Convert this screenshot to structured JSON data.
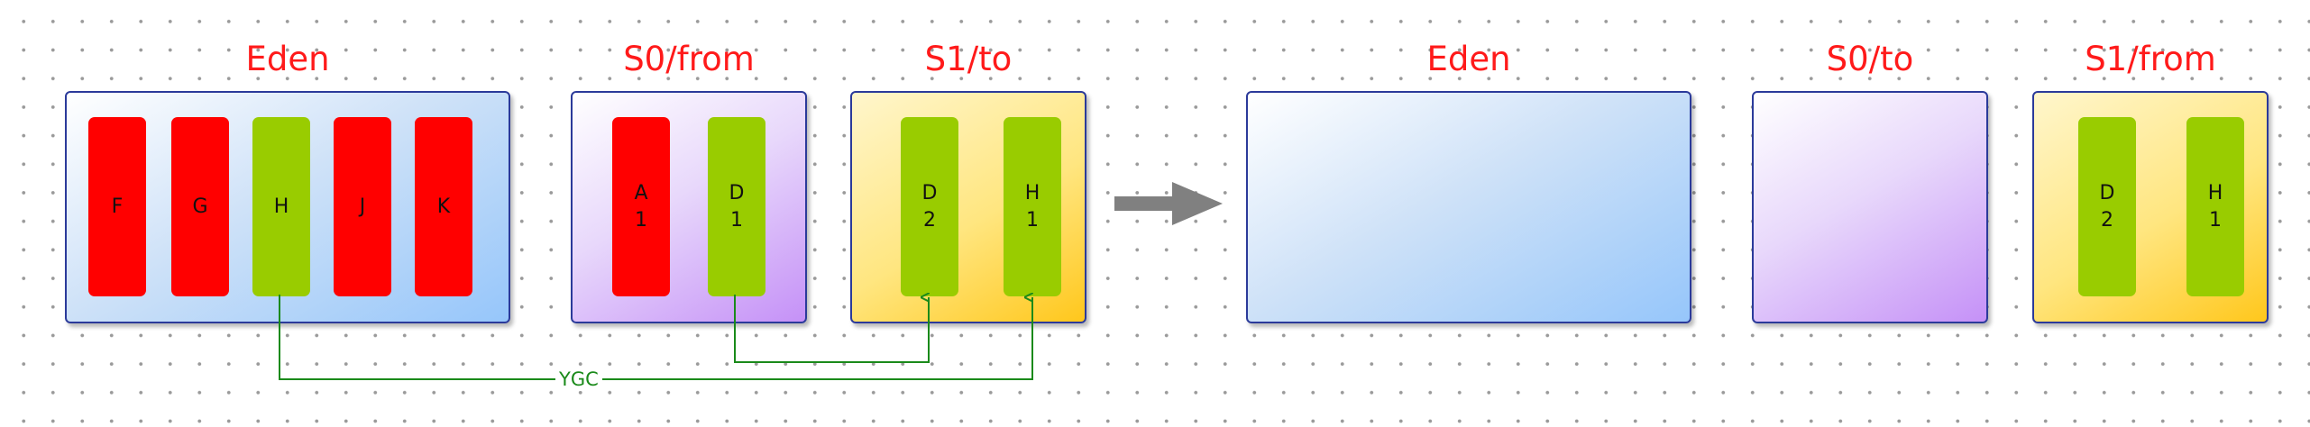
{
  "before": {
    "eden": {
      "title": "Eden",
      "objects": [
        "F",
        "G",
        "H",
        "J",
        "K"
      ]
    },
    "s0": {
      "title": "S0/from",
      "objects": [
        "A\n1",
        "D\n1"
      ]
    },
    "s1": {
      "title": "S1/to",
      "objects": [
        "D\n2",
        "H\n1"
      ]
    }
  },
  "after": {
    "eden": {
      "title": "Eden"
    },
    "s0": {
      "title": "S0/to"
    },
    "s1": {
      "title": "S1/from",
      "objects": [
        "D\n2",
        "H\n1"
      ]
    }
  },
  "connector_label": "YGC",
  "colors": {
    "title": "#ff1a1a",
    "dead_object": "#ff0000",
    "live_object": "#99cc00",
    "connector": "#1a8a1a",
    "transition_arrow": "#808080",
    "region_border": "#2b3a9a"
  }
}
